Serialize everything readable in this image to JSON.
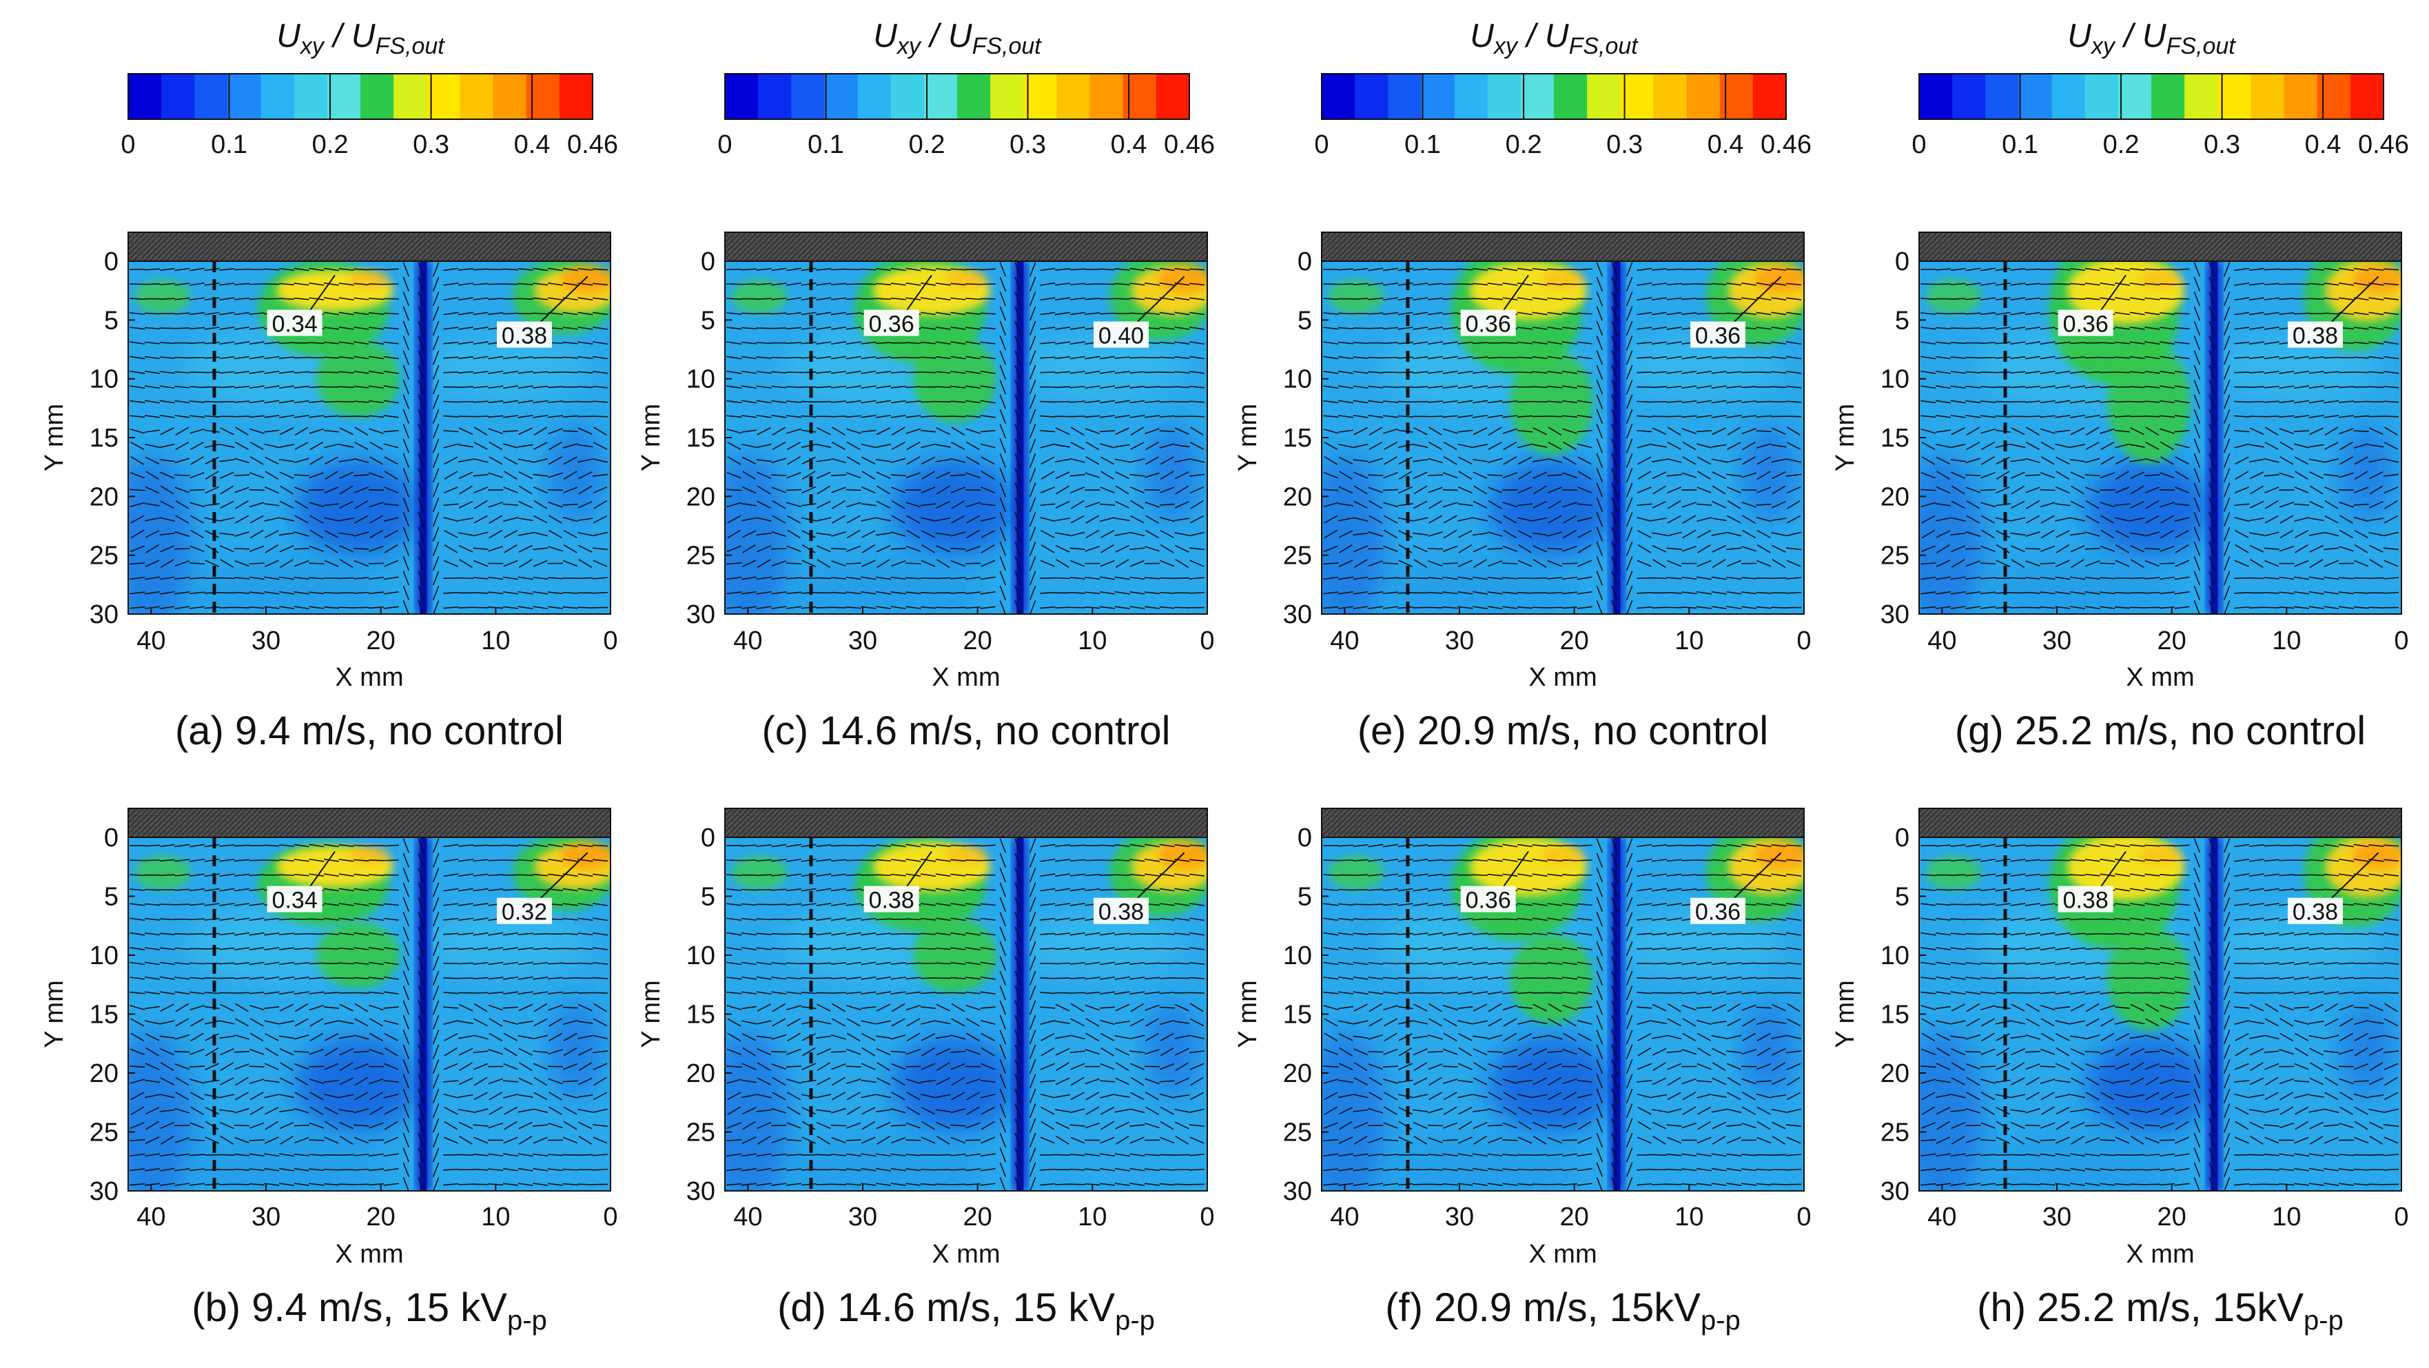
{
  "figure": {
    "colorbar": {
      "title_main_1": "U",
      "title_sub_1": "xy",
      "title_sep": " / ",
      "title_main_2": "U",
      "title_sub_2": "FS,out",
      "tick_labels": [
        "0",
        "0.1",
        "0.2",
        "0.3",
        "0.4",
        "0.46"
      ],
      "tick_values": [
        0,
        0.1,
        0.2,
        0.3,
        0.4,
        0.46
      ],
      "range": [
        0,
        0.46
      ],
      "colors": [
        "#0000d8",
        "#0a2cf0",
        "#1458f5",
        "#1e88f8",
        "#28b4f5",
        "#3ccfe6",
        "#58e0e0",
        "#2ec94a",
        "#d6f01a",
        "#ffe600",
        "#ffc400",
        "#ff9a00",
        "#ff5a00",
        "#ff1a00"
      ]
    }
  },
  "chart_data": [
    {
      "type": "heatmap",
      "panel": "(a)",
      "caption": "(a)  9.4 m/s, no control",
      "xlabel": "X mm",
      "ylabel": "Y mm",
      "xlim": [
        42,
        0
      ],
      "ylim": [
        0,
        30
      ],
      "x_ticks": [
        "40",
        "30",
        "20",
        "10",
        "0"
      ],
      "y_ticks": [
        "0",
        "5",
        "10",
        "15",
        "20",
        "25",
        "30"
      ],
      "dashed_line_x": 34.5,
      "dark_band_x": 16.3,
      "annotations": [
        {
          "label": "0.34",
          "value": 0.34
        },
        {
          "label": "0.38",
          "value": 0.38
        }
      ]
    },
    {
      "type": "heatmap",
      "panel": "(c)",
      "caption": "(c)  14.6 m/s, no control",
      "xlabel": "X mm",
      "ylabel": "Y mm",
      "xlim": [
        42,
        0
      ],
      "ylim": [
        0,
        30
      ],
      "x_ticks": [
        "40",
        "30",
        "20",
        "10",
        "0"
      ],
      "y_ticks": [
        "0",
        "5",
        "10",
        "15",
        "20",
        "25",
        "30"
      ],
      "dashed_line_x": 34.5,
      "dark_band_x": 16.3,
      "annotations": [
        {
          "label": "0.36",
          "value": 0.36
        },
        {
          "label": "0.40",
          "value": 0.4
        }
      ]
    },
    {
      "type": "heatmap",
      "panel": "(e)",
      "caption": "(e)  20.9 m/s, no control",
      "xlabel": "X mm",
      "ylabel": "Y mm",
      "xlim": [
        42,
        0
      ],
      "ylim": [
        0,
        30
      ],
      "x_ticks": [
        "40",
        "30",
        "20",
        "10",
        "0"
      ],
      "y_ticks": [
        "0",
        "5",
        "10",
        "15",
        "20",
        "25",
        "30"
      ],
      "dashed_line_x": 34.5,
      "dark_band_x": 16.3,
      "annotations": [
        {
          "label": "0.36",
          "value": 0.36
        },
        {
          "label": "0.36",
          "value": 0.36
        }
      ]
    },
    {
      "type": "heatmap",
      "panel": "(g)",
      "caption": "(g)  25.2 m/s, no control",
      "xlabel": "X mm",
      "ylabel": "Y mm",
      "xlim": [
        42,
        0
      ],
      "ylim": [
        0,
        30
      ],
      "x_ticks": [
        "40",
        "30",
        "20",
        "10",
        "0"
      ],
      "y_ticks": [
        "0",
        "5",
        "10",
        "15",
        "20",
        "25",
        "30"
      ],
      "dashed_line_x": 34.5,
      "dark_band_x": 16.3,
      "annotations": [
        {
          "label": "0.36",
          "value": 0.36
        },
        {
          "label": "0.38",
          "value": 0.38
        }
      ]
    },
    {
      "type": "heatmap",
      "panel": "(b)",
      "caption": "(b)  9.4 m/s, 15 kV",
      "caption_sub": "p-p",
      "xlabel": "X mm",
      "ylabel": "Y mm",
      "xlim": [
        42,
        0
      ],
      "ylim": [
        0,
        30
      ],
      "x_ticks": [
        "40",
        "30",
        "20",
        "10",
        "0"
      ],
      "y_ticks": [
        "0",
        "5",
        "10",
        "15",
        "20",
        "25",
        "30"
      ],
      "dashed_line_x": 34.5,
      "dark_band_x": 16.3,
      "annotations": [
        {
          "label": "0.34",
          "value": 0.34
        },
        {
          "label": "0.32",
          "value": 0.32
        }
      ]
    },
    {
      "type": "heatmap",
      "panel": "(d)",
      "caption": "(d)  14.6 m/s, 15 kV",
      "caption_sub": "p-p",
      "xlabel": "X mm",
      "ylabel": "Y mm",
      "xlim": [
        42,
        0
      ],
      "ylim": [
        0,
        30
      ],
      "x_ticks": [
        "40",
        "30",
        "20",
        "10",
        "0"
      ],
      "y_ticks": [
        "0",
        "5",
        "10",
        "15",
        "20",
        "25",
        "30"
      ],
      "dashed_line_x": 34.5,
      "dark_band_x": 16.3,
      "annotations": [
        {
          "label": "0.38",
          "value": 0.38
        },
        {
          "label": "0.38",
          "value": 0.38
        }
      ]
    },
    {
      "type": "heatmap",
      "panel": "(f)",
      "caption": "(f)  20.9 m/s, 15kV",
      "caption_sub": "p-p",
      "xlabel": "X mm",
      "ylabel": "Y mm",
      "xlim": [
        42,
        0
      ],
      "ylim": [
        0,
        30
      ],
      "x_ticks": [
        "40",
        "30",
        "20",
        "10",
        "0"
      ],
      "y_ticks": [
        "0",
        "5",
        "10",
        "15",
        "20",
        "25",
        "30"
      ],
      "dashed_line_x": 34.5,
      "dark_band_x": 16.3,
      "annotations": [
        {
          "label": "0.36",
          "value": 0.36
        },
        {
          "label": "0.36",
          "value": 0.36
        }
      ]
    },
    {
      "type": "heatmap",
      "panel": "(h)",
      "caption": "(h)  25.2 m/s, 15kV",
      "caption_sub": "p-p",
      "xlabel": "X mm",
      "ylabel": "Y mm",
      "xlim": [
        42,
        0
      ],
      "ylim": [
        0,
        30
      ],
      "x_ticks": [
        "40",
        "30",
        "20",
        "10",
        "0"
      ],
      "y_ticks": [
        "0",
        "5",
        "10",
        "15",
        "20",
        "25",
        "30"
      ],
      "dashed_line_x": 34.5,
      "dark_band_x": 16.3,
      "annotations": [
        {
          "label": "0.38",
          "value": 0.38
        },
        {
          "label": "0.38",
          "value": 0.38
        }
      ]
    }
  ]
}
